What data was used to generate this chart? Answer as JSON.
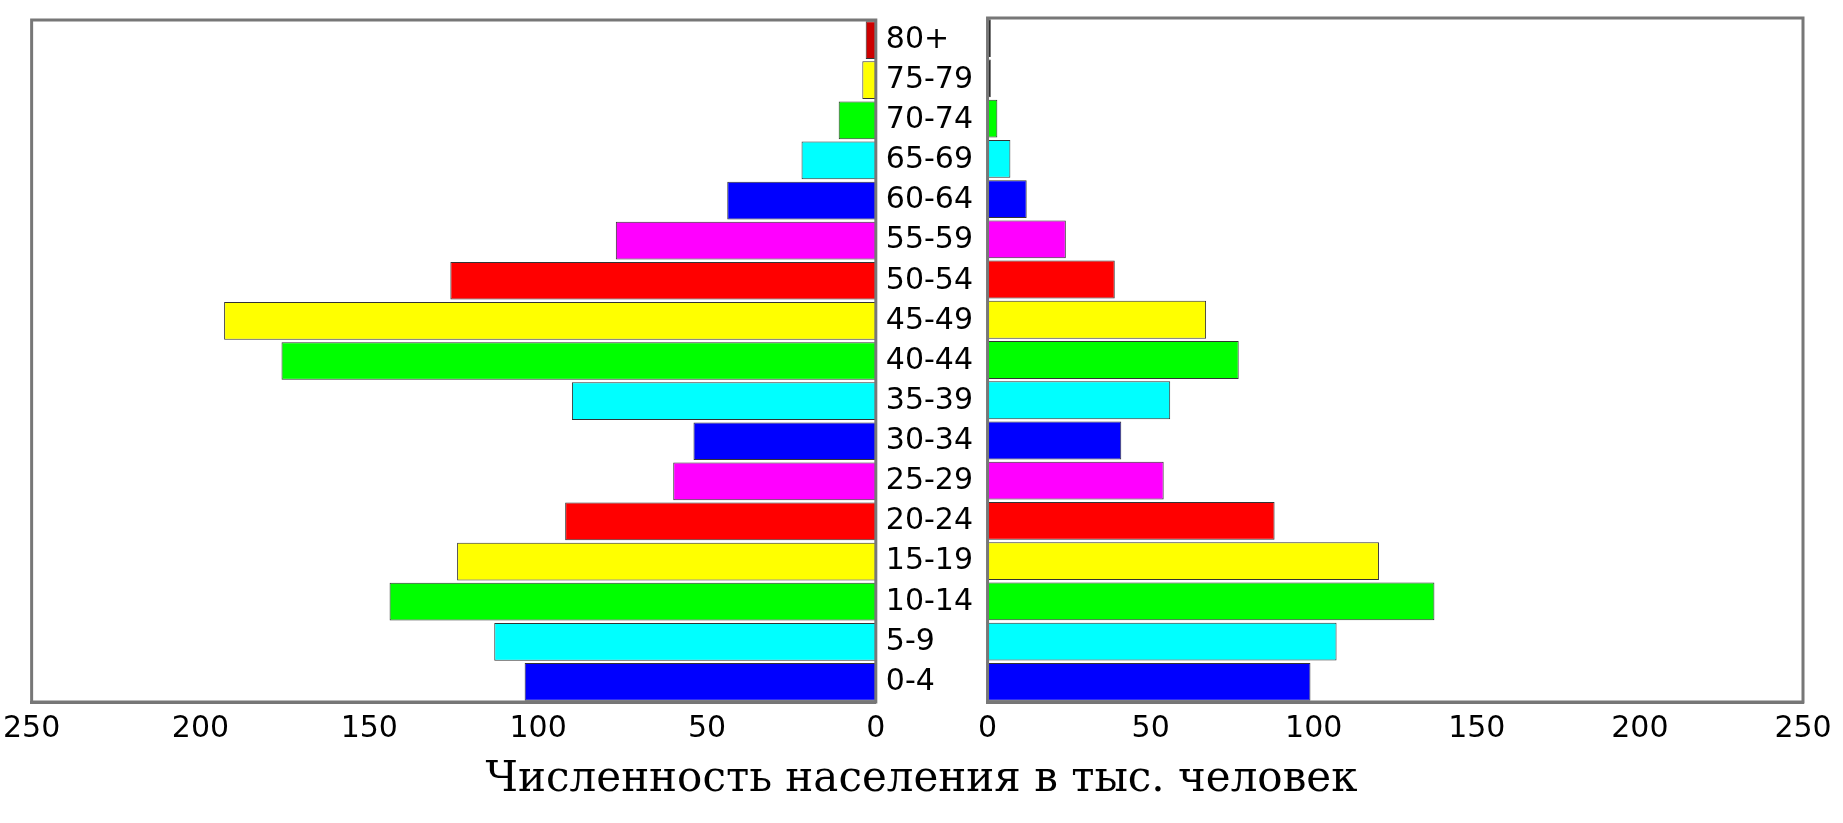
{
  "chart_data": [
    {
      "type": "bar",
      "orientation": "horizontal",
      "categories": [
        "80+",
        "75-79",
        "70-74",
        "65-69",
        "60-64",
        "55-59",
        "50-54",
        "45-49",
        "40-44",
        "35-39",
        "30-34",
        "25-29",
        "20-24",
        "15-19",
        "10-14",
        "5-9",
        "0-4"
      ],
      "values": [
        3,
        4,
        11,
        22,
        44,
        77,
        126,
        193,
        176,
        90,
        54,
        60,
        92,
        124,
        144,
        113,
        104
      ],
      "colors": [
        "#cc0000",
        "#ffff00",
        "#00ff00",
        "#00ffff",
        "#0000ff",
        "#ff00ff",
        "#ff0000",
        "#ffff00",
        "#00ff00",
        "#00ffff",
        "#0000ff",
        "#ff00ff",
        "#ff0000",
        "#ffff00",
        "#00ff00",
        "#00ffff",
        "#0000ff"
      ],
      "xlim": [
        250,
        0
      ],
      "xticks": [
        250,
        200,
        150,
        100,
        50,
        0
      ],
      "grid": false,
      "legend": false,
      "xlabel": "Численность населения в тыс. человек"
    },
    {
      "type": "bar",
      "orientation": "horizontal",
      "categories": [
        null,
        null,
        null,
        null,
        null,
        null,
        null,
        null,
        null,
        null,
        null,
        null,
        null,
        null,
        null,
        null,
        null
      ],
      "values": [
        1,
        1,
        3,
        7,
        12,
        24,
        39,
        67,
        77,
        56,
        41,
        54,
        88,
        120,
        137,
        107,
        99
      ],
      "colors": [
        "#000000",
        "#000000",
        "#00ff00",
        "#00ffff",
        "#0000ff",
        "#ff00ff",
        "#ff0000",
        "#ffff00",
        "#00ff00",
        "#00ffff",
        "#0000ff",
        "#ff00ff",
        "#ff0000",
        "#ffff00",
        "#00ff00",
        "#00ffff",
        "#0000ff"
      ],
      "xlim": [
        0,
        250
      ],
      "xticks": [
        0,
        50,
        100,
        150,
        200,
        250
      ],
      "grid": false,
      "legend": false,
      "tick_labels": "x"
    }
  ]
}
